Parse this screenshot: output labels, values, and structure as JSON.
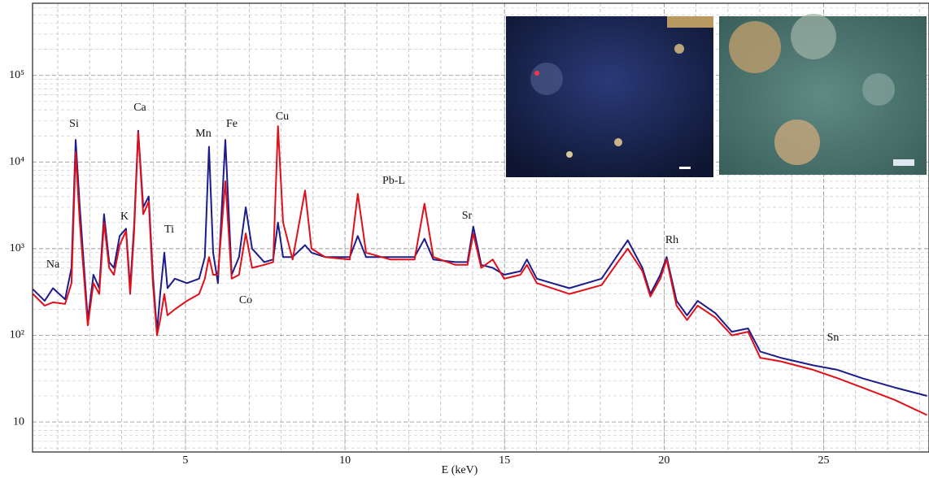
{
  "chart_data": {
    "type": "line",
    "x_label": "E (keV)",
    "x": [
      0.22,
      0.59,
      0.85,
      1.23,
      1.43,
      1.56,
      1.69,
      1.94,
      2.12,
      2.3,
      2.45,
      2.61,
      2.76,
      2.94,
      3.14,
      3.27,
      3.39,
      3.52,
      3.68,
      3.85,
      3.98,
      4.11,
      4.21,
      4.34,
      4.44,
      4.67,
      5.05,
      5.43,
      5.61,
      5.74,
      5.87,
      6.02,
      6.25,
      6.45,
      6.68,
      6.89,
      7.09,
      7.47,
      7.75,
      7.9,
      8.06,
      8.36,
      8.75,
      8.95,
      9.38,
      10.15,
      10.4,
      10.66,
      11.42,
      12.18,
      12.49,
      12.77,
      13.46,
      13.84,
      14.02,
      14.27,
      14.63,
      14.99,
      15.5,
      15.7,
      16.01,
      17.03,
      18.04,
      18.55,
      18.86,
      19.32,
      19.57,
      19.88,
      20.08,
      20.39,
      20.72,
      21.05,
      21.61,
      22.12,
      22.63,
      23.01,
      23.65,
      24.67,
      25.43,
      26.2,
      27.22,
      28.24
    ],
    "series": [
      {
        "color": "#1c1c8a",
        "values": [
          340,
          250,
          350,
          260,
          600,
          18000,
          3000,
          150,
          500,
          350,
          2500,
          700,
          600,
          1400,
          1700,
          350,
          1800,
          23000,
          3000,
          4000,
          500,
          110,
          300,
          900,
          350,
          450,
          400,
          450,
          800,
          15000,
          900,
          400,
          18000,
          500,
          800,
          3000,
          1000,
          700,
          750,
          2000,
          800,
          800,
          1100,
          900,
          800,
          800,
          1400,
          800,
          800,
          800,
          1300,
          750,
          700,
          700,
          1800,
          650,
          600,
          500,
          550,
          750,
          450,
          350,
          450,
          850,
          1250,
          600,
          300,
          500,
          800,
          250,
          170,
          250,
          180,
          110,
          120,
          65,
          55,
          45,
          40,
          32,
          25,
          20
        ]
      },
      {
        "color": "#e0101a",
        "values": [
          300,
          220,
          240,
          230,
          400,
          13000,
          2000,
          130,
          400,
          300,
          2000,
          600,
          500,
          1100,
          1600,
          300,
          1500,
          22000,
          2500,
          3500,
          400,
          100,
          150,
          300,
          170,
          200,
          250,
          300,
          450,
          800,
          500,
          500,
          6000,
          450,
          500,
          1500,
          600,
          650,
          700,
          26000,
          2000,
          750,
          4700,
          1000,
          800,
          750,
          4300,
          900,
          750,
          750,
          3300,
          800,
          650,
          650,
          1500,
          600,
          750,
          450,
          500,
          650,
          400,
          300,
          380,
          700,
          1000,
          550,
          280,
          450,
          750,
          220,
          150,
          220,
          160,
          100,
          110,
          55,
          50,
          40,
          32,
          25,
          18,
          12
        ]
      }
    ],
    "xlim": [
      0.21,
      28.3
    ],
    "ylim": [
      4.5,
      680000
    ],
    "log_y": true,
    "grid": true,
    "xticks": [
      5,
      10,
      15,
      20,
      25
    ],
    "yticks": [
      10,
      {
        "value": 100,
        "label": "10²"
      },
      {
        "value": 1000,
        "label": "10³"
      },
      {
        "value": 10000,
        "label": "10⁴"
      },
      {
        "value": 100000,
        "label": "10⁵"
      }
    ],
    "annotations": [
      "Na",
      "Si",
      "Ca",
      "K",
      "Ti",
      "Mn",
      "Fe",
      "Cu",
      "Co",
      "Pb-L",
      "Sr",
      "Rh",
      "Sn"
    ]
  }
}
